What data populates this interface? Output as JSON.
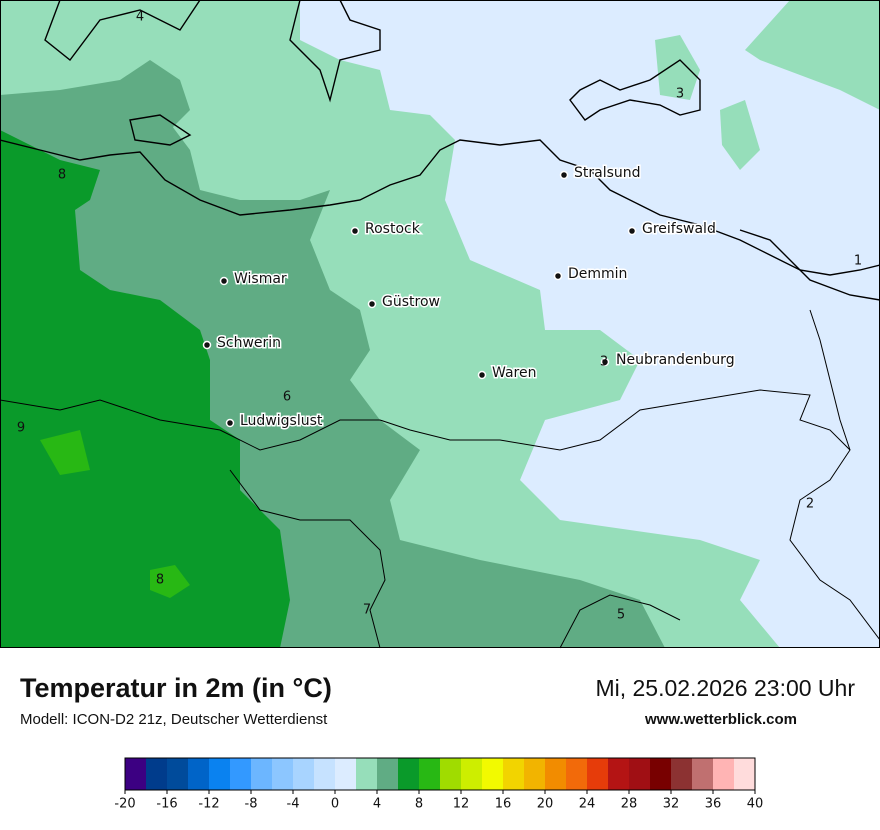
{
  "map": {
    "cities": [
      "Stralsund",
      "Rostock",
      "Greifswald",
      "Demmin",
      "Wismar",
      "Güstrow",
      "Schwerin",
      "Neubrandenburg",
      "Waren",
      "Ludwigslust"
    ],
    "contour_labels": [
      "4",
      "3",
      "8",
      "1",
      "6",
      "3",
      "9",
      "2",
      "8",
      "7",
      "5"
    ]
  },
  "footer": {
    "title": "Temperatur in 2m (in °C)",
    "model": "Modell: ICON-D2 21z, Deutscher Wetterdienst",
    "datetime": "Mi, 25.02.2026 23:00 Uhr",
    "website": "www.wetterblick.com"
  },
  "legend": {
    "lim": [
      -20,
      40
    ],
    "ticks": [
      -20,
      -16,
      -12,
      -8,
      -4,
      0,
      4,
      8,
      12,
      16,
      20,
      24,
      28,
      32,
      36,
      40
    ],
    "colors": [
      "#3c0082",
      "#003c8c",
      "#004b9b",
      "#0064c8",
      "#0a82f0",
      "#3399ff",
      "#6cb6ff",
      "#8cc6ff",
      "#a8d4ff",
      "#c6e2ff",
      "#dcecff",
      "#96deba",
      "#60ac84",
      "#0a9a2a",
      "#28b814",
      "#a0dc00",
      "#cdee00",
      "#f2fa00",
      "#f2d400",
      "#f2b400",
      "#f28c00",
      "#f26a0a",
      "#e63c0a",
      "#b41414",
      "#a00f14",
      "#780000",
      "#8c3232",
      "#c07070",
      "#ffb4b4",
      "#ffdcdc"
    ]
  }
}
